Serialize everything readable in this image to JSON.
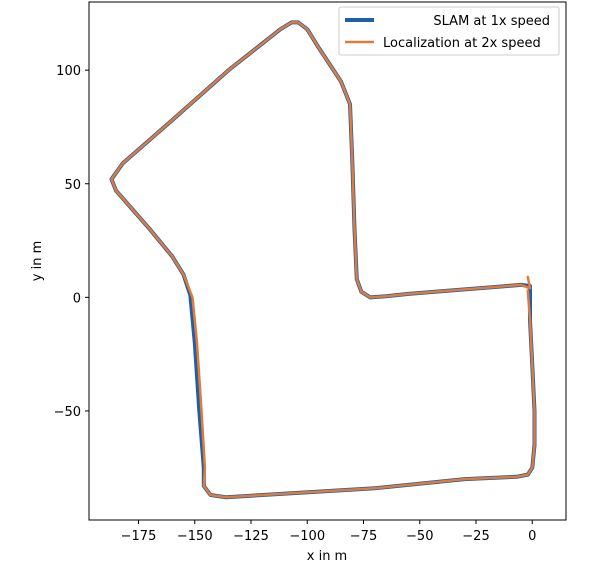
{
  "chart_data": {
    "type": "line",
    "title": "",
    "xlabel": "x in m",
    "ylabel": "y in m",
    "xlim": [
      -197,
      15
    ],
    "ylim": [
      -98,
      130
    ],
    "grid": false,
    "legend_position": "top-right",
    "xticks": [
      -175,
      -150,
      -125,
      -100,
      -75,
      -50,
      -25,
      0
    ],
    "xtick_labels": [
      "−175",
      "−150",
      "−125",
      "−100",
      "−75",
      "−50",
      "−25",
      "0"
    ],
    "yticks": [
      -50,
      0,
      50,
      100
    ],
    "ytick_labels": [
      "−50",
      "0",
      "50",
      "100"
    ],
    "series": [
      {
        "name": "SLAM at 1x speed",
        "color": "#1f5fa8",
        "style": "solid-thick",
        "points": [
          [
            -1,
            -1
          ],
          [
            -1,
            5
          ],
          [
            -5,
            5.5
          ],
          [
            -30,
            3.5
          ],
          [
            -55,
            1.5
          ],
          [
            -65,
            0.5
          ],
          [
            -72,
            0
          ],
          [
            -76,
            2.5
          ],
          [
            -78,
            8
          ],
          [
            -79,
            30
          ],
          [
            -80,
            60
          ],
          [
            -81,
            85
          ],
          [
            -85,
            95
          ],
          [
            -95,
            110
          ],
          [
            -100,
            118
          ],
          [
            -104,
            121
          ],
          [
            -107,
            121
          ],
          [
            -112,
            118
          ],
          [
            -135,
            100
          ],
          [
            -160,
            78
          ],
          [
            -182,
            59
          ],
          [
            -187,
            52
          ],
          [
            -185,
            47
          ],
          [
            -170,
            30
          ],
          [
            -160,
            18
          ],
          [
            -155,
            10
          ],
          [
            -152,
            1
          ],
          [
            -150,
            -20
          ],
          [
            -148,
            -50
          ],
          [
            -146,
            -75
          ],
          [
            -146,
            -83
          ],
          [
            -143,
            -87
          ],
          [
            -136,
            -88
          ],
          [
            -120,
            -87
          ],
          [
            -70,
            -84
          ],
          [
            -30,
            -80
          ],
          [
            -7,
            -79
          ],
          [
            -2,
            -78
          ],
          [
            0,
            -75
          ],
          [
            1,
            -65
          ],
          [
            1,
            -50
          ],
          [
            0,
            -30
          ],
          [
            -1,
            -10
          ],
          [
            -1,
            -1
          ]
        ]
      },
      {
        "name": "Localization at 2x speed",
        "color": "#e07b39",
        "style": "solid",
        "points": [
          [
            -2,
            9
          ],
          [
            -1,
            4
          ],
          [
            -5,
            5.5
          ],
          [
            -30,
            3.5
          ],
          [
            -55,
            1.5
          ],
          [
            -65,
            0.5
          ],
          [
            -72,
            0
          ],
          [
            -76,
            2.5
          ],
          [
            -78,
            8
          ],
          [
            -79,
            30
          ],
          [
            -80,
            60
          ],
          [
            -81,
            85
          ],
          [
            -85,
            95
          ],
          [
            -95,
            110
          ],
          [
            -100,
            118
          ],
          [
            -104,
            121
          ],
          [
            -107,
            121
          ],
          [
            -112,
            118
          ],
          [
            -135,
            100
          ],
          [
            -160,
            78
          ],
          [
            -182,
            59
          ],
          [
            -187,
            52
          ],
          [
            -185,
            47
          ],
          [
            -170,
            30
          ],
          [
            -160,
            18
          ],
          [
            -155,
            10
          ],
          [
            -151,
            0
          ],
          [
            -149,
            -20
          ],
          [
            -147,
            -50
          ],
          [
            -145.5,
            -75
          ],
          [
            -146,
            -83
          ],
          [
            -143,
            -87
          ],
          [
            -136,
            -88
          ],
          [
            -120,
            -87
          ],
          [
            -70,
            -84
          ],
          [
            -30,
            -80
          ],
          [
            -7,
            -79
          ],
          [
            -2,
            -78
          ],
          [
            0,
            -75
          ],
          [
            1,
            -65
          ],
          [
            1,
            -50
          ],
          [
            0,
            -30
          ],
          [
            -1,
            -10
          ],
          [
            -2,
            3
          ]
        ]
      }
    ]
  }
}
